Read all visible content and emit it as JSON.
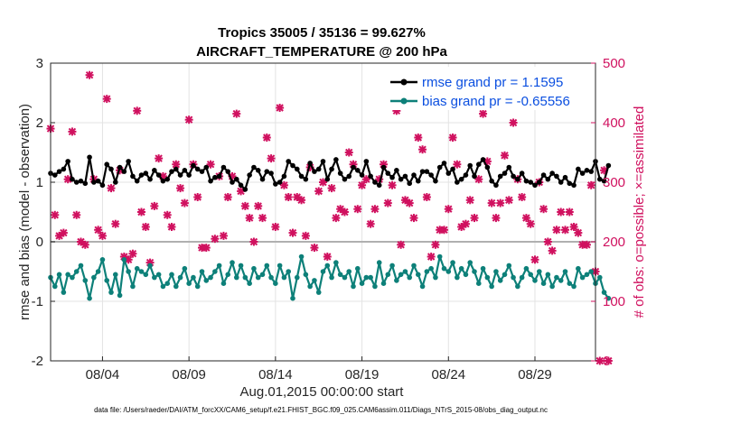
{
  "chart_data": {
    "type": "line",
    "title": "Tropics 35005 / 35136 = 99.627%",
    "subtitle": "AIRCRAFT_TEMPERATURE @ 200 hPa",
    "xlabel": "Aug.01,2015 00:00:00 start",
    "ylabel": "rmse and bias (model - observation)",
    "y2label": "# of obs: o=possible; ×=assimilated",
    "xlim": [
      1,
      32.5
    ],
    "ylim": [
      -2,
      3
    ],
    "y2lim": [
      0,
      500
    ],
    "grid": true,
    "legend_position": "top-right",
    "x_ticks": [
      {
        "value": 4,
        "label": "08/04"
      },
      {
        "value": 9,
        "label": "08/09"
      },
      {
        "value": 14,
        "label": "08/14"
      },
      {
        "value": 19,
        "label": "08/19"
      },
      {
        "value": 24,
        "label": "08/24"
      },
      {
        "value": 29,
        "label": "08/29"
      }
    ],
    "y_ticks": [
      -2,
      -1,
      0,
      1,
      2,
      3
    ],
    "y2_ticks": [
      0,
      100,
      200,
      300,
      400,
      500
    ],
    "footer": "data file: /Users/raeder/DAI/ATM_forcXX/CAM6_setup/f.e21.FHIST_BGC.f09_025.CAM6assim.011/Diags_NTrS_2015-08/obs_diag_output.nc",
    "series": [
      {
        "name": "rmse grand pr = 1.1595",
        "color": "#000000",
        "x_start": 1.0,
        "x_step": 0.25,
        "values": [
          1.15,
          1.12,
          1.18,
          1.22,
          1.35,
          1.05,
          1.0,
          1.02,
          0.98,
          1.42,
          1.0,
          1.02,
          0.95,
          1.3,
          1.22,
          1.0,
          1.25,
          1.18,
          1.35,
          1.1,
          1.02,
          1.12,
          1.15,
          1.05,
          1.2,
          1.12,
          1.02,
          1.05,
          1.18,
          1.22,
          1.12,
          1.2,
          1.12,
          1.28,
          1.22,
          1.18,
          1.25,
          1.02,
          1.08,
          1.1,
          1.25,
          1.18,
          1.0,
          1.05,
          0.95,
          0.88,
          1.12,
          1.25,
          1.2,
          1.05,
          1.18,
          1.15,
          0.97,
          1.0,
          1.1,
          1.35,
          1.28,
          1.22,
          1.1,
          1.05,
          1.32,
          1.18,
          1.22,
          1.35,
          1.05,
          1.22,
          1.38,
          1.15,
          1.05,
          1.1,
          1.25,
          1.2,
          1.12,
          1.35,
          1.1,
          1.0,
          0.95,
          1.25,
          1.15,
          1.08,
          1.2,
          1.05,
          1.1,
          0.98,
          1.12,
          1.02,
          1.18,
          1.18,
          1.12,
          1.02,
          1.25,
          1.32,
          1.15,
          1.22,
          1.0,
          1.05,
          1.12,
          1.28,
          1.1,
          1.3,
          1.38,
          1.25,
          1.02,
          0.95,
          1.1,
          1.15,
          1.25,
          1.1,
          1.05,
          1.15,
          1.02,
          1.0,
          0.95,
          1.0,
          1.12,
          1.05,
          1.15,
          1.1,
          1.0,
          1.08,
          0.98,
          0.95,
          1.22,
          1.15,
          1.2,
          1.18,
          1.35,
          1.05,
          1.02,
          1.28
        ],
        "marker": "dot"
      },
      {
        "name": "bias grand pr = -0.65556",
        "color": "#0d8079",
        "x_start": 1.0,
        "x_step": 0.25,
        "values": [
          -0.6,
          -0.75,
          -0.55,
          -0.85,
          -0.55,
          -0.6,
          -0.5,
          -0.4,
          -0.65,
          -0.95,
          -0.6,
          -0.5,
          -0.3,
          -0.65,
          -0.85,
          -0.55,
          -0.9,
          -0.3,
          -0.5,
          -0.75,
          -0.45,
          -0.5,
          -0.55,
          -0.4,
          -0.6,
          -0.55,
          -0.75,
          -0.7,
          -0.55,
          -0.75,
          -0.6,
          -0.45,
          -0.7,
          -0.6,
          -0.75,
          -0.5,
          -0.65,
          -0.6,
          -0.5,
          -0.4,
          -0.7,
          -0.55,
          -0.35,
          -0.6,
          -0.4,
          -0.6,
          -0.7,
          -0.45,
          -0.6,
          -0.55,
          -0.4,
          -0.6,
          -0.7,
          -0.4,
          -0.6,
          -0.5,
          -0.95,
          -0.6,
          -0.25,
          -0.55,
          -0.75,
          -0.65,
          -0.85,
          -0.5,
          -0.4,
          -0.6,
          -0.35,
          -0.55,
          -0.6,
          -0.5,
          -0.75,
          -0.45,
          -0.7,
          -0.6,
          -0.6,
          -0.75,
          -0.35,
          -0.7,
          -0.55,
          -0.4,
          -0.65,
          -0.55,
          -0.5,
          -0.6,
          -0.4,
          -0.55,
          -0.75,
          -0.5,
          -0.45,
          -0.6,
          -0.25,
          -0.45,
          -0.5,
          -0.35,
          -0.6,
          -0.45,
          -0.55,
          -0.35,
          -0.5,
          -0.7,
          -0.45,
          -0.6,
          -0.75,
          -0.5,
          -0.65,
          -0.55,
          -0.4,
          -0.6,
          -0.75,
          -0.6,
          -0.45,
          -0.55,
          -0.65,
          -0.5,
          -0.7,
          -0.55,
          -0.75,
          -0.6,
          -0.65,
          -0.5,
          -0.7,
          -0.75,
          -0.45,
          -0.6,
          -0.55,
          -0.5,
          -0.7,
          -0.6,
          -0.85,
          -0.95
        ],
        "marker": "dot"
      },
      {
        "name": "# of obs possible / assimilated",
        "color": "#d0115f",
        "axis": "right",
        "x_start": 1.0,
        "x_step": 0.25,
        "values": [
          390,
          245,
          210,
          215,
          305,
          385,
          245,
          200,
          195,
          480,
          305,
          220,
          210,
          440,
          290,
          230,
          320,
          175,
          170,
          180,
          420,
          250,
          225,
          165,
          260,
          340,
          310,
          245,
          225,
          330,
          290,
          265,
          405,
          330,
          275,
          190,
          190,
          330,
          205,
          310,
          210,
          275,
          310,
          415,
          285,
          260,
          240,
          200,
          260,
          240,
          375,
          340,
          225,
          425,
          295,
          275,
          215,
          275,
          270,
          210,
          325,
          190,
          285,
          300,
          175,
          290,
          240,
          255,
          250,
          350,
          330,
          255,
          295,
          305,
          230,
          255,
          305,
          330,
          265,
          295,
          420,
          195,
          270,
          265,
          240,
          375,
          355,
          275,
          175,
          195,
          220,
          220,
          255,
          375,
          330,
          225,
          230,
          270,
          240,
          305,
          415,
          335,
          265,
          240,
          265,
          345,
          270,
          400,
          305,
          275,
          240,
          230,
          170,
          300,
          255,
          200,
          185,
          220,
          250,
          220,
          250,
          225,
          215,
          195,
          195,
          295,
          150,
          0,
          320,
          0
        ],
        "marker": "x"
      }
    ]
  }
}
